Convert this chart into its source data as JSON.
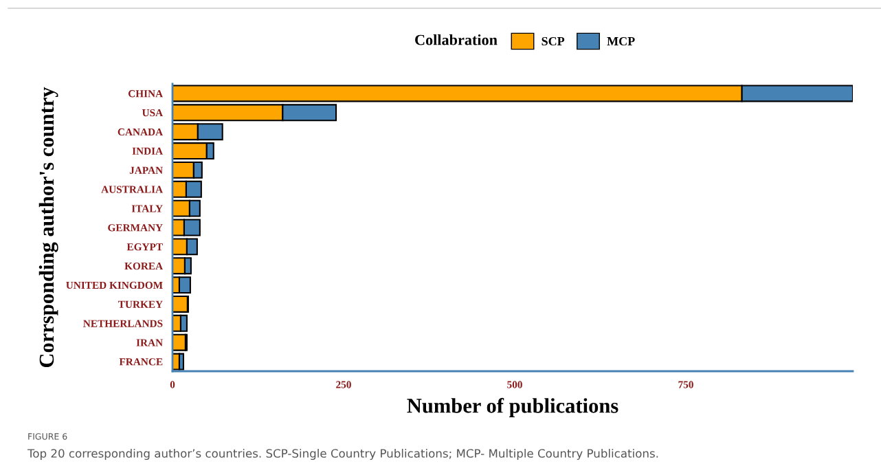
{
  "chart_data": {
    "type": "bar",
    "orientation": "horizontal",
    "stacked": true,
    "categories": [
      "CHINA",
      "USA",
      "CANADA",
      "INDIA",
      "JAPAN",
      "AUSTRALIA",
      "ITALY",
      "GERMANY",
      "EGYPT",
      "KOREA",
      "UNITED KINGDOM",
      "TURKEY",
      "NETHERLANDS",
      "IRAN",
      "FRANCE"
    ],
    "series": [
      {
        "name": "SCP",
        "color": "#ffa500",
        "values": [
          832,
          161,
          37,
          50,
          31,
          20,
          25,
          17,
          21,
          18,
          10,
          22,
          12,
          19,
          10
        ]
      },
      {
        "name": "MCP",
        "color": "#4682b4",
        "values": [
          162,
          78,
          36,
          10,
          12,
          22,
          15,
          23,
          15,
          9,
          16,
          1,
          9,
          2,
          6
        ]
      }
    ],
    "xlabel": "Number of publications",
    "ylabel": "Corrsponding author's country",
    "legend_title": "Collabration",
    "legend": "top",
    "xlim": [
      0,
      994
    ],
    "xticks": [
      0,
      250,
      500,
      750
    ],
    "grid": false,
    "annotations": [
      "FIGURE 6",
      "Top 20 corresponding author’s countries. SCP-Single Country Publications; MCP- Multiple Country Publications."
    ]
  }
}
